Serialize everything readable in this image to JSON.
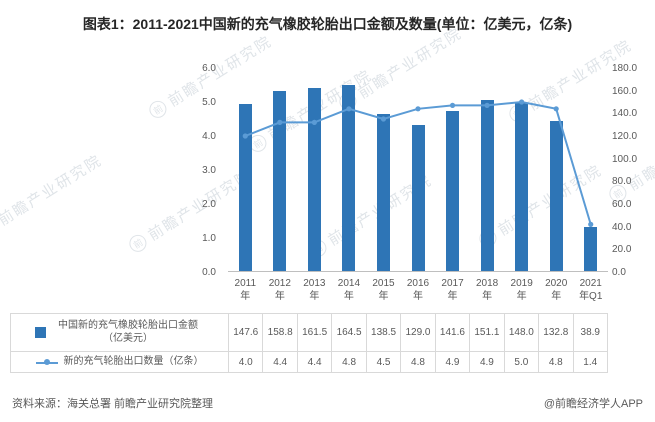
{
  "title": "图表1：2011-2021中国新的充气橡胶轮胎出口金额及数量(单位：亿美元，亿条)",
  "chart_data": {
    "type": "bar+line",
    "categories": [
      "2011年",
      "2012年",
      "2013年",
      "2014年",
      "2015年",
      "2016年",
      "2017年",
      "2018年",
      "2019年",
      "2020年",
      "2021年Q1"
    ],
    "series": [
      {
        "name": "中国新的充气橡胶轮胎出口金额（亿美元）",
        "type": "bar",
        "axis": "right",
        "color": "#2E75B6",
        "values": [
          147.6,
          158.8,
          161.5,
          164.5,
          138.5,
          129.0,
          141.6,
          151.1,
          148.0,
          132.8,
          38.9
        ]
      },
      {
        "name": "新的充气轮胎出口数量（亿条）",
        "type": "line",
        "axis": "left",
        "color": "#5B9BD5",
        "values": [
          4.0,
          4.4,
          4.4,
          4.8,
          4.5,
          4.8,
          4.9,
          4.9,
          5.0,
          4.8,
          1.4
        ]
      }
    ],
    "left_axis": {
      "min": 0,
      "max": 6,
      "labels": [
        "0.0",
        "1.0",
        "2.0",
        "3.0",
        "4.0",
        "5.0",
        "6.0"
      ]
    },
    "right_axis": {
      "min": 0,
      "max": 180,
      "labels": [
        "0.0",
        "20.0",
        "40.0",
        "60.0",
        "80.0",
        "100.0",
        "120.0",
        "140.0",
        "160.0",
        "180.0"
      ]
    },
    "grid": false,
    "legend_position": "bottom-table"
  },
  "table": {
    "rows": [
      {
        "label": "中国新的充气橡胶轮胎出口金额（亿美元）",
        "marker": "bar",
        "values": [
          "147.6",
          "158.8",
          "161.5",
          "164.5",
          "138.5",
          "129.0",
          "141.6",
          "151.1",
          "148.0",
          "132.8",
          "38.9"
        ]
      },
      {
        "label": "新的充气轮胎出口数量（亿条）",
        "marker": "line",
        "values": [
          "4.0",
          "4.4",
          "4.4",
          "4.8",
          "4.5",
          "4.8",
          "4.9",
          "4.9",
          "5.0",
          "4.8",
          "1.4"
        ]
      }
    ]
  },
  "footer": {
    "source": "资料来源：海关总署 前瞻产业研究院整理",
    "credit": "@前瞻经济学人APP"
  },
  "watermark": {
    "text": "前瞻产业研究院",
    "logo_char": "前"
  }
}
